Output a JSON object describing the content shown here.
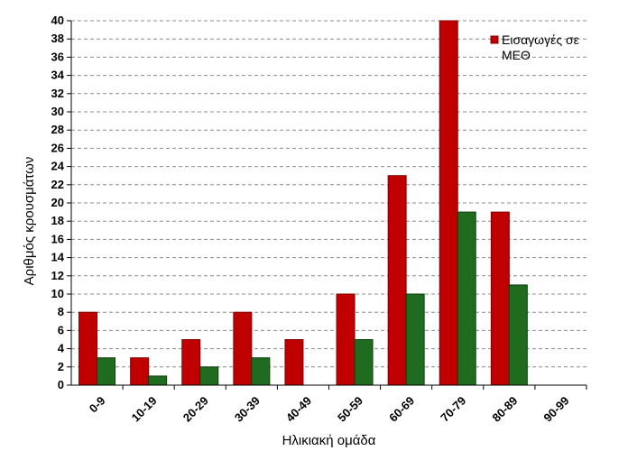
{
  "chart_data": {
    "type": "bar",
    "title": "",
    "xlabel": "Ηλικιακή ομάδα",
    "ylabel": "Αριθμός κρουσμάτων",
    "categories": [
      "0-9",
      "10-19",
      "20-29",
      "30-39",
      "40-49",
      "50-59",
      "60-69",
      "70-79",
      "80-89",
      "90-99"
    ],
    "series": [
      {
        "name": "Εισαγωγές σε ΜΕΘ",
        "legend_lines": [
          "Εισαγωγές σε",
          "ΜΕΘ"
        ],
        "color": "#C00000",
        "border": "#800000",
        "values": [
          8,
          3,
          5,
          8,
          5,
          10,
          23,
          40,
          19,
          0
        ]
      },
      {
        "name": "",
        "color": "#1F6B1F",
        "border": "#0F3F0F",
        "values": [
          3,
          1,
          2,
          3,
          0,
          5,
          10,
          19,
          11,
          0
        ]
      }
    ],
    "ylim": [
      0,
      40
    ],
    "ytick_step": 2,
    "grid": true,
    "grid_style": "dashed",
    "legend_position": "top-right"
  }
}
